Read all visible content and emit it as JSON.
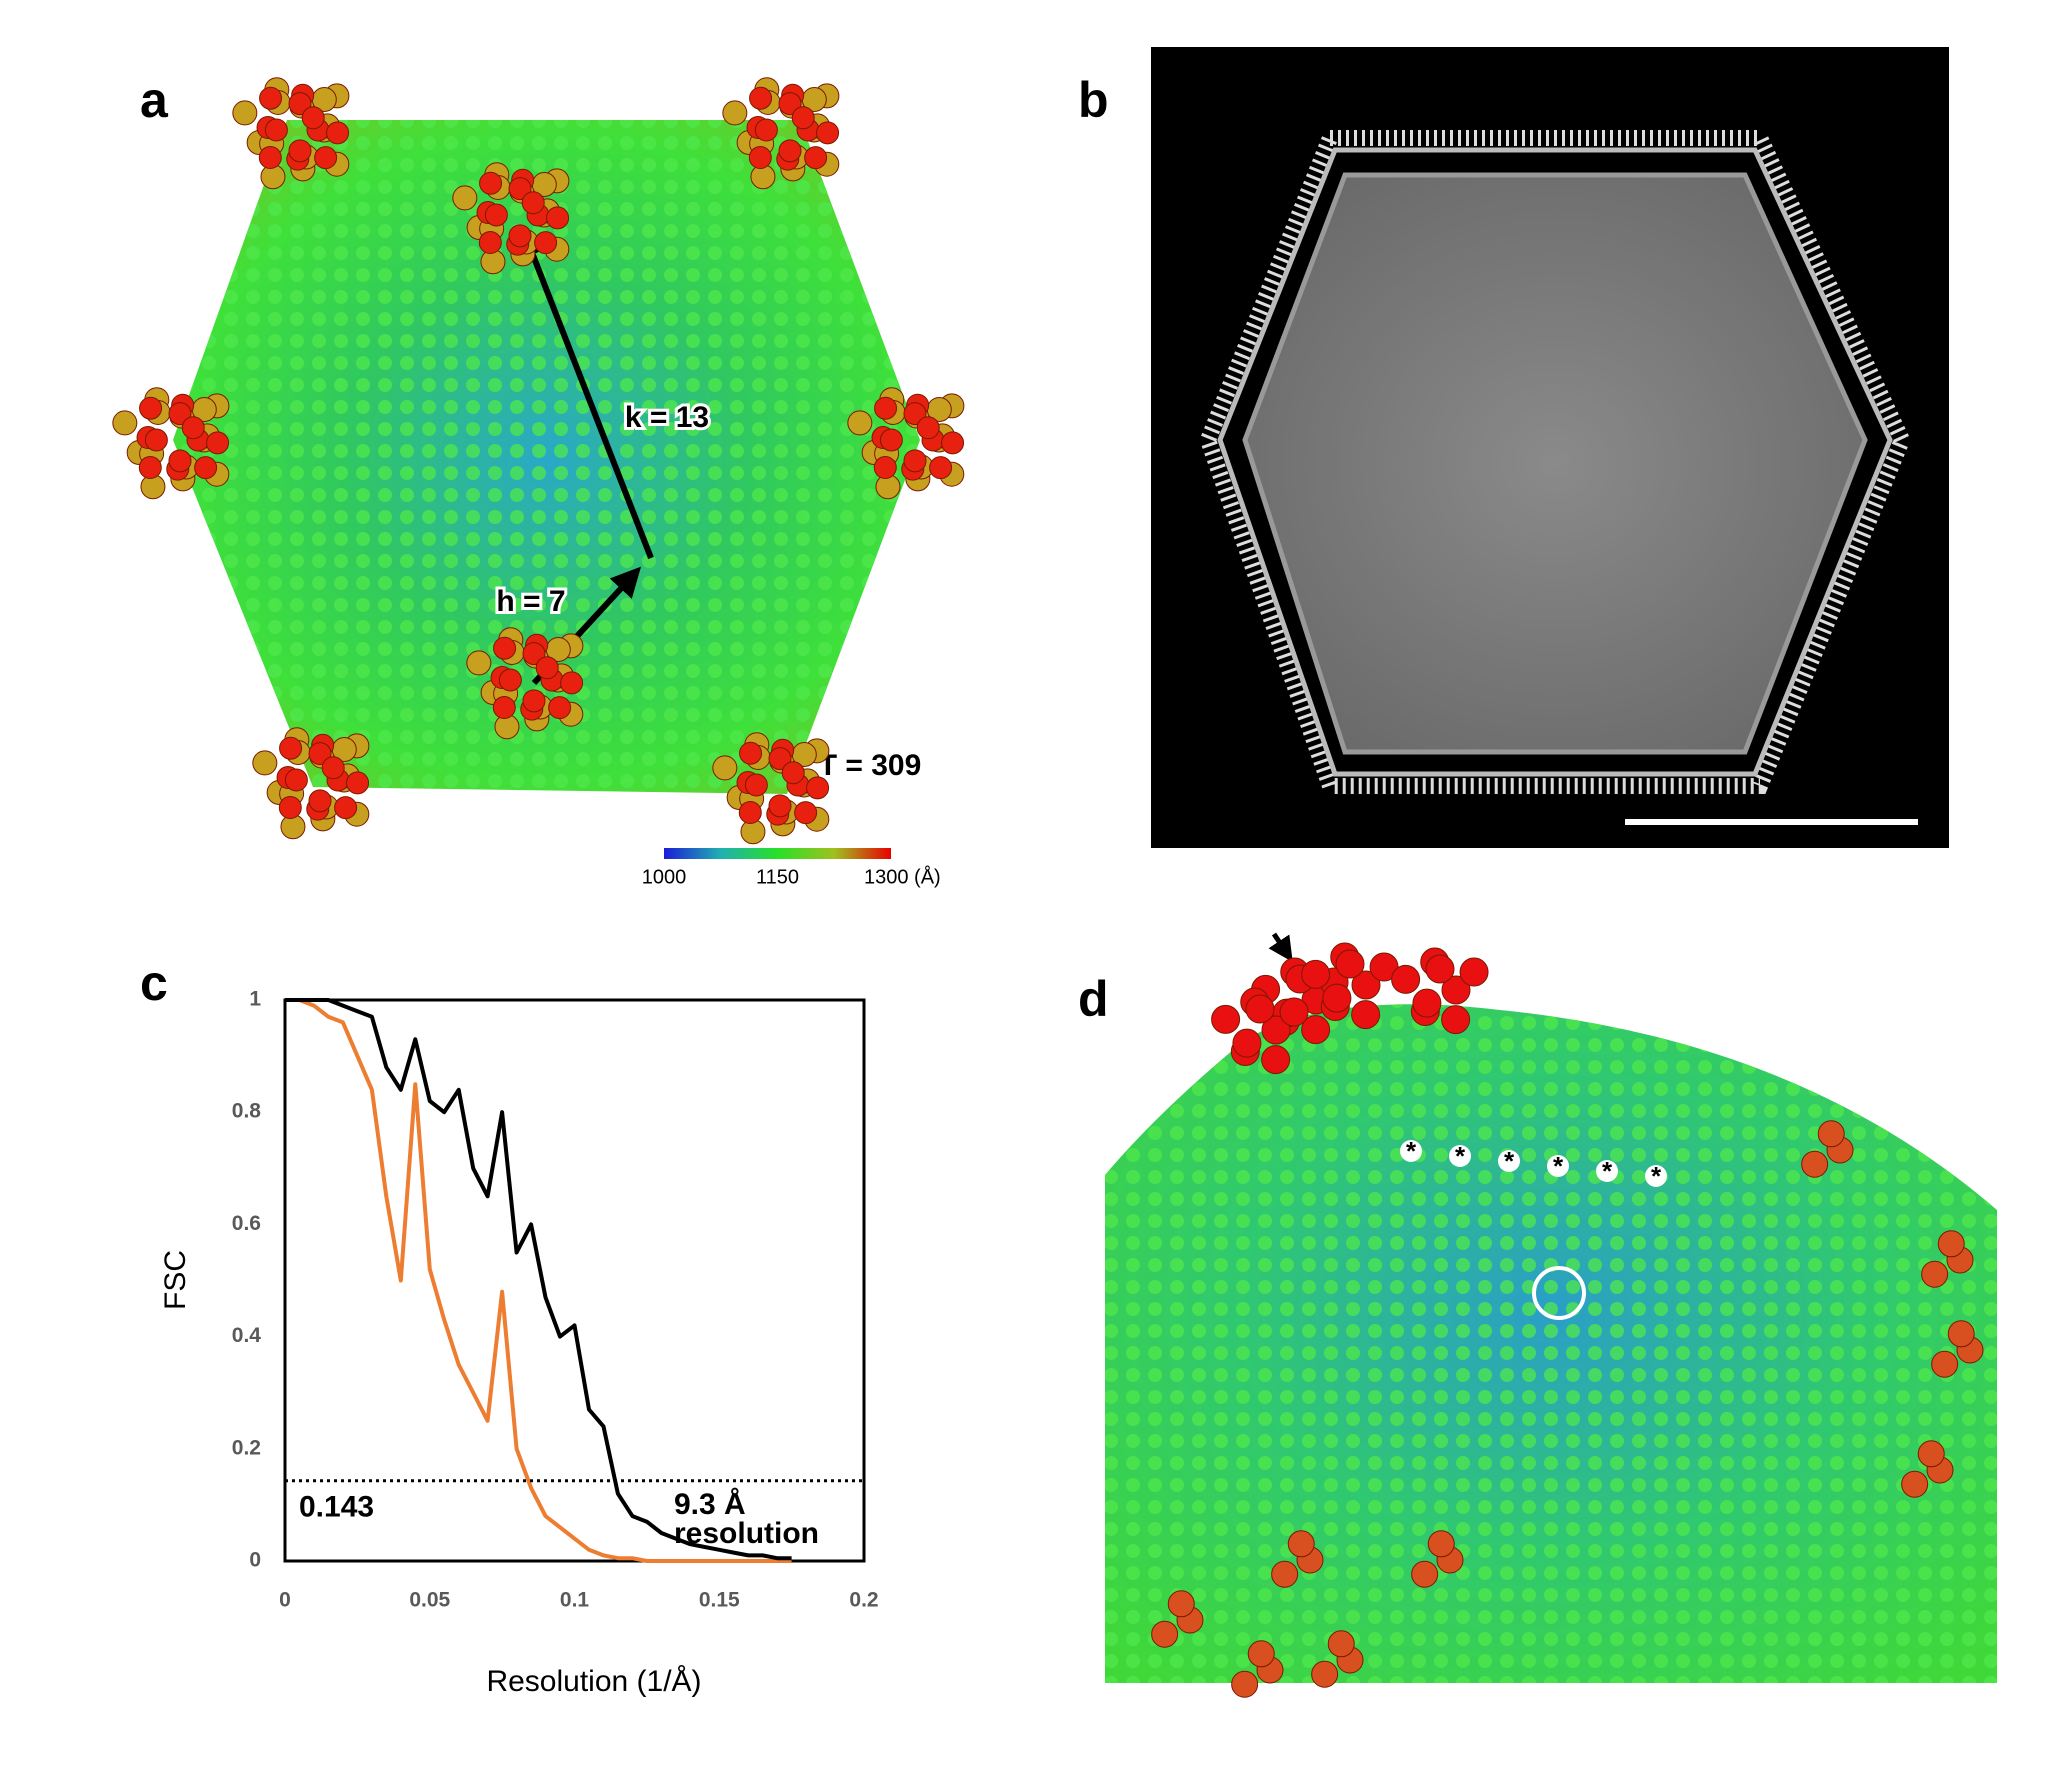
{
  "panel_labels": [
    "a",
    "b",
    "c",
    "d"
  ],
  "panel_a": {
    "k_label": "k = 13",
    "h_label": "h = 7",
    "t_label": "T = 309",
    "colorbar": {
      "lim": [
        1000,
        1300
      ],
      "ticks": [
        1000,
        1150,
        {
          "value": 1300,
          "label": "1300 (Å)"
        }
      ]
    }
  },
  "panel_d": {
    "asterisks": [
      "*",
      "*",
      "*",
      "*",
      "*",
      "*"
    ]
  },
  "chart_data": {
    "type": "line",
    "xlabel": "Resolution (1/Å)",
    "ylabel": "FSC",
    "xlim": [
      0,
      0.2
    ],
    "xticks": [
      0,
      0.05,
      0.1,
      0.15,
      0.2
    ],
    "ylim": [
      0,
      1
    ],
    "yticks": [
      0,
      0.2,
      0.4,
      0.6,
      0.8,
      1
    ],
    "grid": false,
    "threshold": 0.143,
    "annotation": [
      "9.3 Å",
      "resolution"
    ],
    "x": [
      0,
      0.005,
      0.01,
      0.015,
      0.02,
      0.025,
      0.03,
      0.035,
      0.04,
      0.045,
      0.05,
      0.055,
      0.06,
      0.065,
      0.07,
      0.075,
      0.08,
      0.085,
      0.09,
      0.095,
      0.1,
      0.105,
      0.11,
      0.115,
      0.12,
      0.125,
      0.13,
      0.135,
      0.14,
      0.145,
      0.15,
      0.155,
      0.16,
      0.165,
      0.17,
      0.175
    ],
    "series": [
      {
        "color": "#000000",
        "values": [
          1,
          1,
          1,
          1,
          0.99,
          0.98,
          0.97,
          0.88,
          0.84,
          0.93,
          0.82,
          0.8,
          0.84,
          0.7,
          0.65,
          0.8,
          0.55,
          0.6,
          0.47,
          0.4,
          0.42,
          0.27,
          0.24,
          0.12,
          0.08,
          0.07,
          0.05,
          0.04,
          0.03,
          0.025,
          0.02,
          0.015,
          0.01,
          0.01,
          0.005,
          0.005
        ]
      },
      {
        "color": "#ed7d31",
        "values": [
          1,
          1,
          0.99,
          0.97,
          0.96,
          0.9,
          0.84,
          0.65,
          0.5,
          0.85,
          0.52,
          0.43,
          0.35,
          0.3,
          0.25,
          0.48,
          0.2,
          0.13,
          0.08,
          0.06,
          0.04,
          0.02,
          0.01,
          0.005,
          0.005,
          0,
          0,
          0,
          0,
          0,
          0,
          0,
          0,
          0,
          0,
          0
        ]
      }
    ]
  }
}
